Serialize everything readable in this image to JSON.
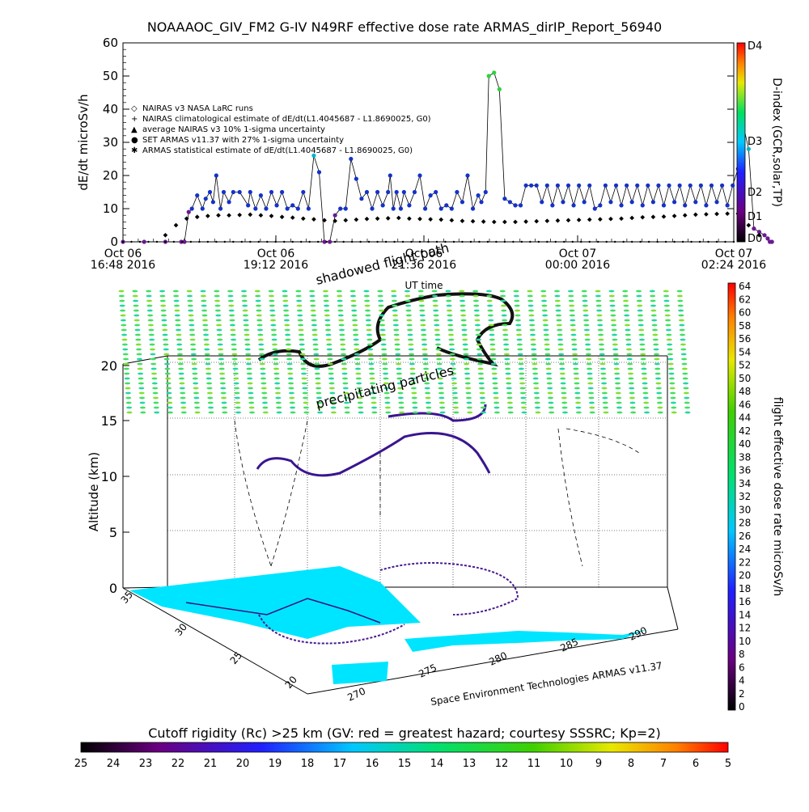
{
  "header": {
    "title": "NOAAAOC_GIV_FM2 G-IV    N49RF   effective dose rate ARMAS_dirIP_Report_56940"
  },
  "chart_data": [
    {
      "type": "scatter",
      "title": "NOAAAOC_GIV_FM2 G-IV    N49RF   effective dose rate ARMAS_dirIP_Report_56940",
      "xlabel": "UT time",
      "ylabel": "dE/dt microSv/h",
      "ylim": [
        0,
        60
      ],
      "y_ticks": [
        "0",
        "10",
        "20",
        "30",
        "40",
        "50",
        "60"
      ],
      "x_ticks": [
        {
          "line1": "Oct 06",
          "line2": "16:48 2016"
        },
        {
          "line1": "Oct 06",
          "line2": "19:12 2016"
        },
        {
          "line1": "Oct 06",
          "line2": "21:36 2016"
        },
        {
          "line1": "Oct 07",
          "line2": "00:00 2016"
        },
        {
          "line1": "Oct 07",
          "line2": "02:24 2016"
        }
      ],
      "legend": [
        {
          "symbol": "◇",
          "label": "NAIRAS v3 NASA LaRC runs"
        },
        {
          "symbol": "+",
          "label": "NAIRAS climatological estimate of dE/dt(L1.4045687 - L1.8690025, G0)"
        },
        {
          "symbol": "▲",
          "label": "average NAIRAS v3 10% 1-sigma uncertainty"
        },
        {
          "symbol": "●",
          "label": "SET ARMAS v11.37 with 27% 1-sigma uncertainty"
        },
        {
          "symbol": "✱",
          "label": "ARMAS statistical estimate of dE/dt(L1.4045687 - L1.8690025, G0)"
        }
      ],
      "legend_placement": "left",
      "grid": false,
      "series": [
        {
          "name": "SET ARMAS v11.37 with 27% 1-sigma uncertainty",
          "x_minutes": [
            0,
            20,
            40,
            55,
            58,
            62,
            65,
            70,
            75,
            78,
            82,
            85,
            88,
            92,
            95,
            100,
            104,
            110,
            118,
            120,
            125,
            130,
            135,
            140,
            145,
            150,
            155,
            160,
            165,
            170,
            175,
            180,
            185,
            190,
            195,
            200,
            205,
            210,
            215,
            220,
            225,
            230,
            235,
            240,
            245,
            250,
            252,
            255,
            258,
            262,
            265,
            270,
            275,
            280,
            285,
            290,
            295,
            300,
            305,
            310,
            315,
            320,
            325,
            330,
            335,
            338,
            342,
            345,
            350,
            355,
            360,
            365,
            370,
            375,
            380,
            385,
            390,
            395,
            400,
            405,
            410,
            415,
            420,
            425,
            430,
            435,
            440,
            445,
            450,
            455,
            460,
            465,
            470,
            475,
            480,
            485,
            490,
            495,
            500,
            505,
            510,
            515,
            520,
            525,
            530,
            535,
            540,
            545,
            550,
            555,
            560,
            565,
            570,
            575,
            580,
            585,
            590,
            595,
            600,
            605,
            608,
            610,
            612
          ],
          "y": [
            0,
            0,
            0,
            0,
            0,
            9,
            10,
            14,
            10,
            13,
            15,
            12,
            20,
            10,
            15,
            12,
            15,
            15,
            11,
            15,
            10,
            14,
            10,
            15,
            11,
            15,
            10,
            11,
            10,
            15,
            10,
            26,
            21,
            0,
            0,
            8,
            10,
            10,
            25,
            19,
            13,
            15,
            10,
            15,
            11,
            15,
            20,
            10,
            15,
            10,
            15,
            11,
            15,
            20,
            10,
            14,
            15,
            10,
            11,
            10,
            15,
            12,
            20,
            10,
            14,
            12,
            15,
            50,
            51,
            46,
            13,
            12,
            11,
            11,
            17,
            17,
            17,
            12,
            17,
            11,
            17,
            12,
            17,
            11,
            17,
            12,
            17,
            10,
            11,
            17,
            12,
            17,
            11,
            17,
            12,
            17,
            11,
            17,
            12,
            17,
            11,
            17,
            12,
            17,
            11,
            17,
            12,
            17,
            11,
            17,
            12,
            17,
            11,
            17,
            22,
            35,
            28,
            4,
            3,
            2,
            1,
            0,
            0
          ],
          "color": "#1432c8"
        },
        {
          "name": "NAIRAS climatological estimate of dE/dt(L1.4045687 - L1.8690025, G0)",
          "x_minutes": [
            40,
            50,
            60,
            70,
            80,
            90,
            100,
            110,
            120,
            130,
            140,
            150,
            160,
            170,
            180,
            190,
            200,
            210,
            220,
            230,
            240,
            250,
            260,
            270,
            280,
            290,
            300,
            310,
            320,
            330,
            340,
            350,
            360,
            370,
            380,
            390,
            400,
            410,
            420,
            430,
            440,
            450,
            460,
            470,
            480,
            490,
            500,
            510,
            520,
            530,
            540,
            550,
            560,
            570,
            580,
            590,
            600
          ],
          "y": [
            2,
            5,
            7,
            7.5,
            7.8,
            8,
            8,
            8.1,
            8.2,
            8,
            7.8,
            7.5,
            7.3,
            7,
            6.8,
            6.5,
            6.3,
            6.5,
            6.7,
            6.9,
            7,
            7.1,
            7.2,
            7,
            6.9,
            6.8,
            6.7,
            6.5,
            6.3,
            6.2,
            6.1,
            6,
            6,
            6,
            6.1,
            6.2,
            6.3,
            6.4,
            6.5,
            6.6,
            6.7,
            6.8,
            6.9,
            7,
            7.2,
            7.4,
            7.5,
            7.6,
            7.8,
            8,
            8.2,
            8.3,
            8.4,
            8.5,
            8.5,
            5,
            2
          ],
          "color": "#000000"
        }
      ],
      "colorbar": {
        "label": "D-index (GCR,solar,TP)",
        "ticks": [
          "D0",
          "D1",
          "D2",
          "D3",
          "D4"
        ]
      }
    },
    {
      "type": "map3d",
      "labels": {
        "shadowed_path": "shadowed flight path",
        "precipitating": "precipitating particles",
        "credit": "Space Environment Technologies ARMAS v11.37"
      },
      "zlabel": "Altitude (km)",
      "z_ticks": [
        "0",
        "5",
        "10",
        "15",
        "20"
      ],
      "lat_ticks": [
        "35",
        "30",
        "25",
        "20"
      ],
      "lon_ticks": [
        "270",
        "275",
        "280",
        "285",
        "290"
      ],
      "colorbar": {
        "label": "flight effective dose rate microSv/h",
        "ticks": [
          "0",
          "2",
          "4",
          "6",
          "8",
          "10",
          "12",
          "14",
          "16",
          "18",
          "20",
          "22",
          "24",
          "26",
          "28",
          "30",
          "32",
          "34",
          "36",
          "38",
          "40",
          "42",
          "44",
          "46",
          "48",
          "50",
          "52",
          "54",
          "56",
          "58",
          "60",
          "62",
          "64"
        ]
      },
      "bottom_colorbar": {
        "label": "Cutoff rigidity (Rc) >25 km (GV: red = greatest hazard; courtesy SSSRC; Kp=2)",
        "ticks": [
          "25",
          "24",
          "23",
          "22",
          "21",
          "20",
          "19",
          "18",
          "17",
          "16",
          "15",
          "14",
          "13",
          "12",
          "11",
          "10",
          "9",
          "8",
          "7",
          "6",
          "5"
        ]
      }
    }
  ]
}
